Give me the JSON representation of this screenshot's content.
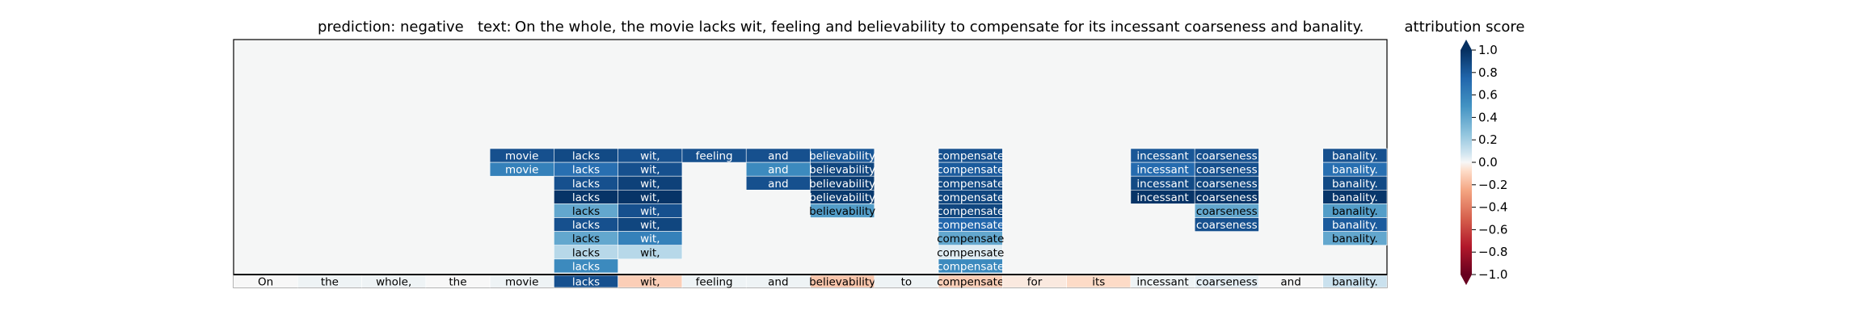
{
  "chart_data": {
    "type": "heatmap",
    "title": {
      "prediction_label": "prediction:",
      "prediction_value": "negative",
      "text_label": "text:",
      "text_value": "On the whole, the movie lacks wit, feeling and believability to compensate for its incessant coarseness and banality."
    },
    "tokens": [
      "On",
      "the",
      "whole,",
      "the",
      "movie",
      "lacks",
      "wit,",
      "feeling",
      "and",
      "believability",
      "to",
      "compensate",
      "for",
      "its",
      "incessant",
      "coarseness",
      "and",
      "banality."
    ],
    "base_row_scores": [
      0,
      0.02,
      0.02,
      0,
      0.02,
      0.85,
      -0.12,
      0.02,
      0.02,
      -0.15,
      0.02,
      -0.12,
      -0.04,
      -0.08,
      0.02,
      0.04,
      0,
      0.1
    ],
    "layers": [
      {
        "cells": [
          [
            4,
            0.85
          ],
          [
            5,
            0.88
          ],
          [
            6,
            0.85
          ],
          [
            7,
            0.85
          ],
          [
            8,
            0.85
          ],
          [
            9,
            0.82
          ],
          [
            11,
            0.85
          ],
          [
            14,
            0.82
          ],
          [
            15,
            0.85
          ],
          [
            17,
            0.85
          ]
        ]
      },
      {
        "cells": [
          [
            4,
            0.6
          ],
          [
            5,
            0.7
          ],
          [
            6,
            0.85
          ],
          [
            8,
            0.55
          ],
          [
            9,
            0.9
          ],
          [
            11,
            0.8
          ],
          [
            14,
            0.72
          ],
          [
            15,
            0.85
          ],
          [
            17,
            0.7
          ]
        ]
      },
      {
        "cells": [
          [
            5,
            0.85
          ],
          [
            6,
            0.92
          ],
          [
            8,
            0.85
          ],
          [
            9,
            0.95
          ],
          [
            11,
            0.88
          ],
          [
            14,
            0.88
          ],
          [
            15,
            0.9
          ],
          [
            17,
            0.88
          ]
        ]
      },
      {
        "cells": [
          [
            5,
            0.98
          ],
          [
            6,
            0.98
          ],
          [
            9,
            0.96
          ],
          [
            11,
            0.9
          ],
          [
            14,
            0.98
          ],
          [
            15,
            0.98
          ],
          [
            17,
            0.97
          ]
        ]
      },
      {
        "cells": [
          [
            5,
            0.4
          ],
          [
            6,
            0.85
          ],
          [
            9,
            0.45
          ],
          [
            11,
            0.9
          ],
          [
            15,
            0.4
          ],
          [
            17,
            0.45
          ]
        ]
      },
      {
        "cells": [
          [
            5,
            0.85
          ],
          [
            6,
            0.9
          ],
          [
            11,
            0.75
          ],
          [
            15,
            0.85
          ],
          [
            17,
            0.8
          ]
        ]
      },
      {
        "cells": [
          [
            5,
            0.4
          ],
          [
            6,
            0.6
          ],
          [
            11,
            0.4
          ],
          [
            17,
            0.4
          ]
        ]
      },
      {
        "cells": [
          [
            5,
            0.15
          ],
          [
            6,
            0.15
          ],
          [
            11,
            0.05
          ]
        ]
      },
      {
        "cells": [
          [
            5,
            0.55
          ],
          [
            11,
            0.55
          ]
        ]
      }
    ],
    "colorbar": {
      "label": "attribution score",
      "ticks": [
        1.0,
        0.8,
        0.6,
        0.4,
        0.2,
        0.0,
        -0.2,
        -0.4,
        -0.6,
        -0.8,
        -1.0
      ],
      "tick_labels": [
        "1.0",
        "0.8",
        "0.6",
        "0.4",
        "0.2",
        "0.0",
        "−0.2",
        "−0.4",
        "−0.6",
        "−0.8",
        "−1.0"
      ],
      "range": [
        -1.0,
        1.0
      ],
      "colormap": "RdBu"
    }
  }
}
